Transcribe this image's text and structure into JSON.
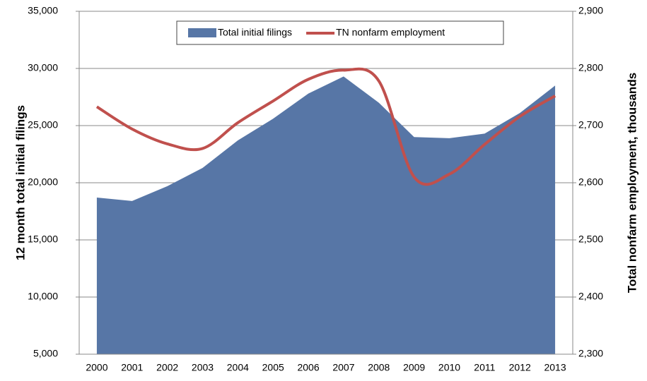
{
  "chart_data": {
    "type": "area-line",
    "categories": [
      "2000",
      "2001",
      "2002",
      "2003",
      "2004",
      "2005",
      "2006",
      "2007",
      "2008",
      "2009",
      "2010",
      "2011",
      "2012",
      "2013"
    ],
    "series": [
      {
        "name": "Total initial filings",
        "type": "area",
        "color": "#5776a6",
        "values": [
          18700,
          18400,
          19700,
          21300,
          23700,
          25600,
          27800,
          29300,
          27000,
          24000,
          23900,
          24300,
          26100,
          28500
        ]
      },
      {
        "name": "TN nonfarm employment",
        "type": "line",
        "axis": "y2",
        "color": "#c0504d",
        "values": [
          2733,
          2694,
          2668,
          2660,
          2705,
          2743,
          2781,
          2797,
          2778,
          2610,
          2615,
          2667,
          2716,
          2752
        ]
      }
    ],
    "ylabel": "12 month total initial filings",
    "y2label": "Total nonfarm employment, thousands",
    "ylim": [
      5000,
      35000
    ],
    "yticks": [
      {
        "value": 5000,
        "label": "5,000"
      },
      {
        "value": 10000,
        "label": "10,000"
      },
      {
        "value": 15000,
        "label": "15,000"
      },
      {
        "value": 20000,
        "label": "20,000"
      },
      {
        "value": 25000,
        "label": "25,000"
      },
      {
        "value": 30000,
        "label": "30,000"
      },
      {
        "value": 35000,
        "label": "35,000"
      }
    ],
    "y2lim": [
      2300,
      2900
    ],
    "y2ticks": [
      {
        "value": 2300,
        "label": "2,300"
      },
      {
        "value": 2400,
        "label": "2,400"
      },
      {
        "value": 2500,
        "label": "2,500"
      },
      {
        "value": 2600,
        "label": "2,600"
      },
      {
        "value": 2700,
        "label": "2,700"
      },
      {
        "value": 2800,
        "label": "2,800"
      },
      {
        "value": 2900,
        "label": "2,900"
      }
    ],
    "grid": true,
    "legend": "top"
  }
}
